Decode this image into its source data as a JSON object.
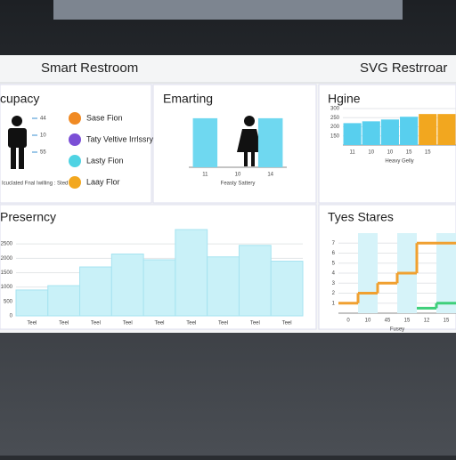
{
  "header": {
    "left_title": "Smart Restroom",
    "right_title": "SVG Restrroar"
  },
  "occupancy": {
    "title": "cupacy",
    "counts": [
      "44",
      "10",
      "55"
    ],
    "note": "Icuclated Fnal Iwilling : Sted",
    "legend": [
      {
        "name": "Sase Fion",
        "color": "#f08a24"
      },
      {
        "name": "Taty Veltive Irrlssry",
        "color": "#7b4fd6"
      },
      {
        "name": "Lasty Fion",
        "color": "#4fd3e3"
      },
      {
        "name": "Laay Flor",
        "color": "#f2a71f"
      }
    ]
  },
  "charts": [
    {
      "type": "bar",
      "title": "Emarting",
      "categories": [
        "11",
        "10",
        "14"
      ],
      "values": [
        95,
        null,
        95
      ],
      "colors": [
        "#6fd8f0",
        "#6fd8f0",
        "#6fd8f0"
      ],
      "ylim": [
        0,
        100
      ],
      "xlabel": "Feasty Sattery"
    },
    {
      "type": "bar",
      "title": "Hgine",
      "categories": [
        "11",
        "10",
        "10",
        "15",
        "15",
        null
      ],
      "values": [
        220,
        230,
        240,
        255,
        270,
        270
      ],
      "colors": [
        "#58cfee",
        "#58cfee",
        "#58cfee",
        "#58cfee",
        "#f2a71f",
        "#f2a71f"
      ],
      "ylim": [
        100,
        300
      ],
      "yticks": [
        150,
        200,
        250,
        300
      ],
      "xlabel": "Heavy Gelly"
    },
    {
      "type": "bar",
      "title": "Preserncy",
      "categories": [
        "Teel",
        "Teel",
        "Teel",
        "Teel",
        "Teel",
        "Teel",
        "Teel",
        "Teel",
        "Teel"
      ],
      "values": [
        900,
        1050,
        1700,
        2150,
        1950,
        3000,
        2050,
        2450,
        1900
      ],
      "colors": [
        "#c9f1f8",
        "#c9f1f8",
        "#c9f1f8",
        "#c9f1f8",
        "#c9f1f8",
        "#c9f1f8",
        "#c9f1f8",
        "#c9f1f8",
        "#c9f1f8"
      ],
      "ylim": [
        0,
        3000
      ],
      "yticks": [
        0,
        500,
        1000,
        1500,
        2000,
        2500
      ]
    },
    {
      "type": "step",
      "title": "Tyes Stares",
      "categories": [
        "0",
        "10",
        "45",
        "15",
        "12",
        "15"
      ],
      "ylim": [
        0,
        8
      ],
      "yticks": [
        1,
        2,
        3,
        4,
        5,
        6,
        7
      ],
      "series": [
        {
          "color": "#f0a030",
          "values": [
            1,
            2,
            3,
            4,
            7,
            7
          ]
        },
        {
          "color": "#3ecf7a",
          "values": [
            null,
            null,
            null,
            null,
            0.5,
            1
          ]
        }
      ],
      "xlabel": "Fusey"
    }
  ]
}
